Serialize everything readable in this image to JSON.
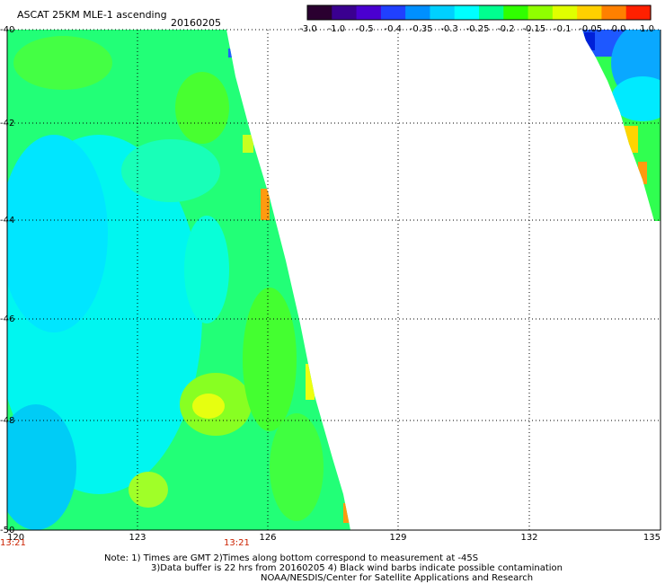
{
  "header": {
    "title": "ASCAT 25KM MLE-1 ascending",
    "date": "20160205"
  },
  "colorbar": {
    "labels": [
      "-3.0",
      "-1.0",
      "-0.5",
      "-0.4",
      "-0.35",
      "-0.3",
      "-0.25",
      "-0.2",
      "-0.15",
      "-0.1",
      "-0.05",
      "0.0",
      "1.0"
    ],
    "colors": [
      "#2a0030",
      "#3a0090",
      "#4a00d0",
      "#2040ff",
      "#0090ff",
      "#00d0ff",
      "#00ffff",
      "#00ff90",
      "#30ff00",
      "#90ff00",
      "#e0ff00",
      "#ffd000",
      "#ff8000",
      "#ff2000"
    ]
  },
  "map": {
    "x_ticks": [
      "120",
      "123",
      "126",
      "129",
      "132",
      "135"
    ],
    "y_ticks": [
      "-40",
      "-42",
      "-44",
      "-46",
      "-48",
      "-50"
    ],
    "time_labels": [
      "13:21",
      "13:21"
    ]
  },
  "notes": [
    "Note: 1) Times are GMT 2)Times along bottom correspond to measurement at -45S",
    "3)Data buffer is 22 hrs from 20160205 4) Black wind barbs indicate possible contamination",
    "NOAA/NESDIS/Center for Satellite Applications and Research"
  ]
}
